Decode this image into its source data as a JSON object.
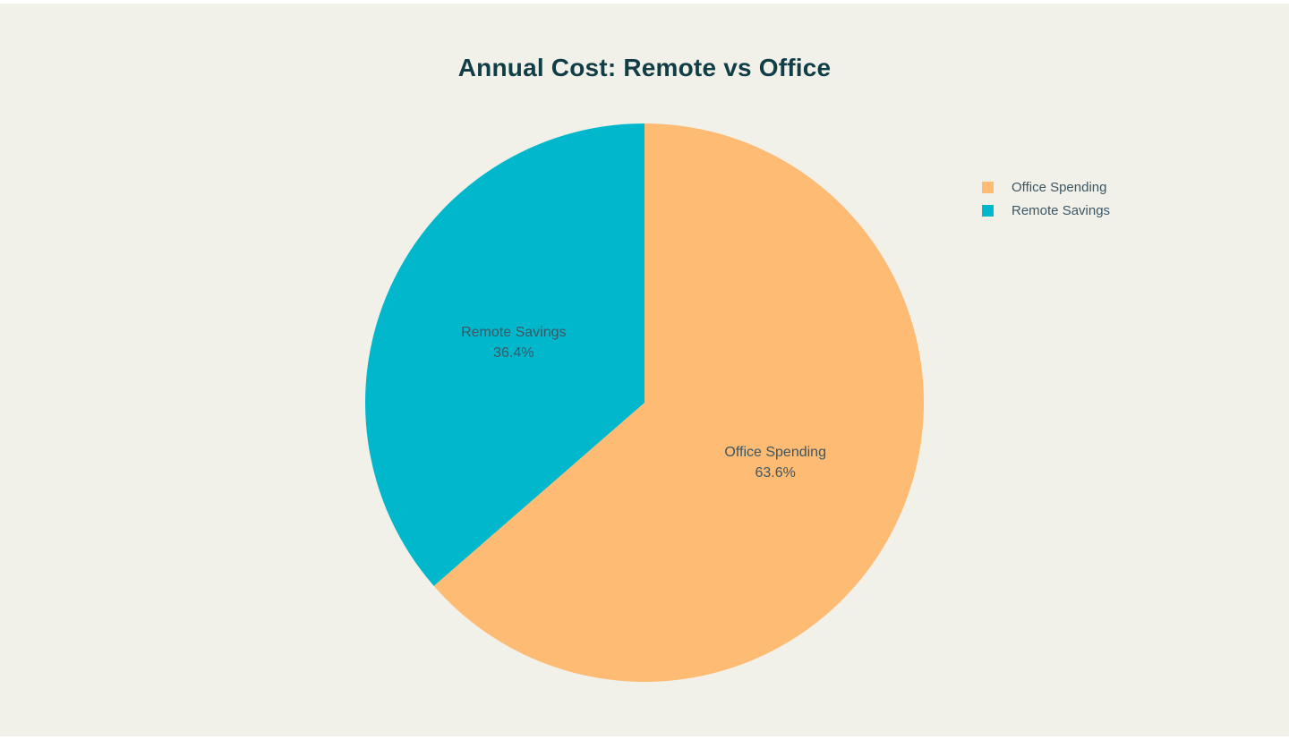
{
  "page": {
    "background_color": "#F1F1EA",
    "edge_strip_color": "#FFFFFF"
  },
  "chart_data": {
    "type": "pie",
    "title": "Annual Cost: Remote vs Office",
    "categories": [
      "Office Spending",
      "Remote Savings"
    ],
    "values": [
      63.6,
      36.4
    ],
    "unit": "%",
    "slices": [
      {
        "label": "Office Spending",
        "percent": 63.6,
        "percent_label": "63.6%",
        "color": "#FDBB74"
      },
      {
        "label": "Remote Savings",
        "percent": 36.4,
        "percent_label": "36.4%",
        "color": "#00B7CC"
      }
    ],
    "start_angle": "top",
    "direction": "clockwise",
    "labels_inside": true,
    "legend_position": "right"
  },
  "legend": {
    "items": [
      {
        "label": "Office Spending",
        "color": "#FDBB74"
      },
      {
        "label": "Remote Savings",
        "color": "#00B7CC"
      }
    ]
  },
  "colors": {
    "title": "#113E46",
    "slice_label_text": "#3D5663",
    "legend_text": "#3C5663"
  }
}
